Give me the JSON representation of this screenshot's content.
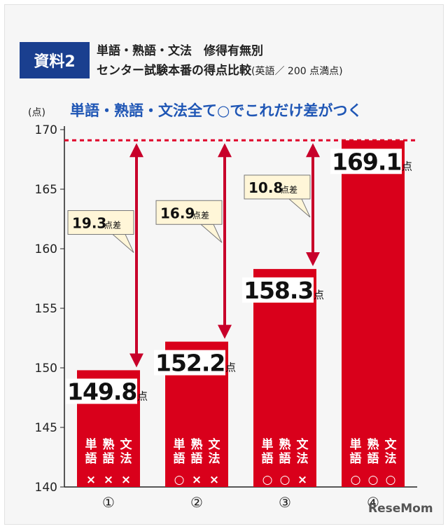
{
  "header": {
    "badge": "資料2",
    "line1": "単語・熟語・文法　修得有無別",
    "line2": "センター試験本番の得点比較",
    "line2_note": "(英語／ 200 点満点)"
  },
  "subtitle": "単語・熟語・文法全て○でこれだけ差がつく",
  "watermark": "ReseMom",
  "chart_data": {
    "type": "bar",
    "title": "センター試験本番の得点比較",
    "ylabel": "(点)",
    "ylim": [
      140,
      170
    ],
    "yticks": [
      "140",
      "145",
      "150",
      "155",
      "160",
      "165",
      "170"
    ],
    "grid": false,
    "reference_line": 169.1,
    "categories": [
      "①",
      "②",
      "③",
      "④"
    ],
    "values": [
      149.8,
      152.2,
      158.3,
      169.1
    ],
    "value_labels": [
      "149.8",
      "152.2",
      "158.3",
      "169.1"
    ],
    "value_suffix": "点",
    "bar_items": [
      [
        "単語",
        "熟語",
        "文法"
      ],
      [
        "単語",
        "熟語",
        "文法"
      ],
      [
        "単語",
        "熟語",
        "文法"
      ],
      [
        "単語",
        "熟語",
        "文法"
      ]
    ],
    "bar_marks": [
      [
        "×",
        "×",
        "×"
      ],
      [
        "○",
        "×",
        "×"
      ],
      [
        "○",
        "○",
        "×"
      ],
      [
        "○",
        "○",
        "○"
      ]
    ],
    "differences": [
      {
        "bar": 0,
        "value": "19.3",
        "suffix": "点差"
      },
      {
        "bar": 1,
        "value": "16.9",
        "suffix": "点差"
      },
      {
        "bar": 2,
        "value": "10.8",
        "suffix": "点差"
      }
    ],
    "colors": {
      "bar": "#d9001b",
      "arrow": "#c8002a",
      "reference": "#e0002a",
      "callout_bg": "#fff6d8",
      "subtitle": "#1f56b5"
    }
  }
}
